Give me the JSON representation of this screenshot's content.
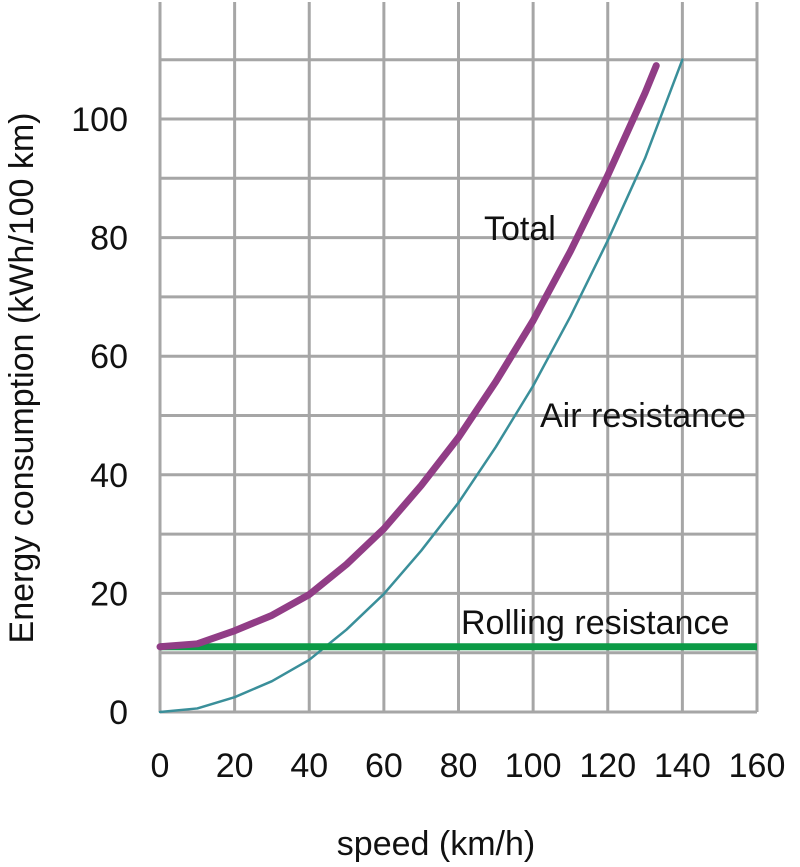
{
  "chart_data": {
    "type": "line",
    "title": "",
    "xlabel": "speed (km/h)",
    "ylabel": "Energy consumption (kWh/100 km)",
    "xlim": [
      0,
      160
    ],
    "ylim": [
      0,
      100
    ],
    "x_ticks": [
      "0",
      "20",
      "40",
      "60",
      "80",
      "100",
      "120",
      "140",
      "160"
    ],
    "y_ticks": [
      "0",
      "20",
      "40",
      "60",
      "80",
      "100"
    ],
    "grid": true,
    "series": [
      {
        "name": "Total",
        "color": "#913d86",
        "x": [
          0,
          10,
          20,
          30,
          40,
          50,
          60,
          70,
          80,
          90,
          100,
          110,
          120,
          130,
          133
        ],
        "y": [
          11,
          11.5,
          13.7,
          16.3,
          19.8,
          24.9,
          30.9,
          38.2,
          46.3,
          55.7,
          66.0,
          77.7,
          90.5,
          104.4,
          109
        ]
      },
      {
        "name": "Air resistance",
        "color": "#3a8f9a",
        "x": [
          0,
          10,
          20,
          30,
          40,
          50,
          60,
          70,
          80,
          90,
          100,
          110,
          120,
          130,
          140
        ],
        "y": [
          0,
          0.6,
          2.5,
          5.2,
          8.8,
          13.9,
          19.9,
          27.2,
          35.3,
          44.7,
          55.0,
          66.7,
          79.5,
          93.4,
          110
        ]
      },
      {
        "name": "Rolling resistance",
        "color": "#0c9a46",
        "x": [
          0,
          160
        ],
        "y": [
          11,
          11
        ]
      }
    ]
  }
}
